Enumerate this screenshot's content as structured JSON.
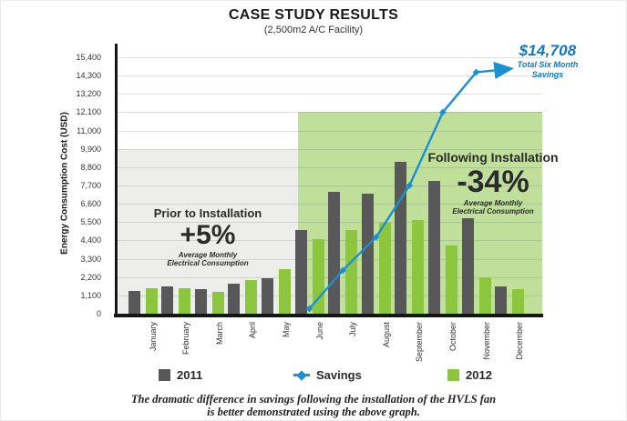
{
  "page": {
    "title": "CASE STUDY RESULTS",
    "subtitle": "(2,500m2 A/C Facility)"
  },
  "chart_data": {
    "type": "bar",
    "title": "CASE STUDY RESULTS",
    "subtitle": "(2,500m2 A/C Facility)",
    "ylabel": "Energy Consumption Cost (USD)",
    "ylim": [
      0,
      15400
    ],
    "ytick_interval": 1100,
    "grid": true,
    "legend_position": "bottom",
    "yticks": [
      {
        "value": 0,
        "label": "0"
      },
      {
        "value": 1100,
        "label": "1,100"
      },
      {
        "value": 2200,
        "label": "2,200"
      },
      {
        "value": 3300,
        "label": "3,300"
      },
      {
        "value": 4400,
        "label": "4,400"
      },
      {
        "value": 5500,
        "label": "5,500"
      },
      {
        "value": 6600,
        "label": "6,600"
      },
      {
        "value": 7700,
        "label": "7,700"
      },
      {
        "value": 8800,
        "label": "8,800"
      },
      {
        "value": 9900,
        "label": "9,900"
      },
      {
        "value": 11000,
        "label": "11,000"
      },
      {
        "value": 12100,
        "label": "12,100"
      },
      {
        "value": 13200,
        "label": "13,200"
      },
      {
        "value": 14300,
        "label": "14,300"
      },
      {
        "value": 15400,
        "label": "15,400"
      }
    ],
    "categories": [
      "January",
      "February",
      "March",
      "April",
      "May",
      "June",
      "July",
      "August",
      "September",
      "October",
      "November",
      "December"
    ],
    "series": [
      {
        "name": "2011",
        "type": "bar",
        "color": "#58585A",
        "values": [
          1350,
          1650,
          1500,
          1800,
          2150,
          5000,
          7300,
          7200,
          9100,
          8000,
          5750,
          1650
        ]
      },
      {
        "name": "2012",
        "type": "bar",
        "color": "#8CC63E",
        "values": [
          1550,
          1550,
          1300,
          2000,
          2700,
          4500,
          5000,
          5450,
          5600,
          4100,
          2200,
          1500
        ]
      },
      {
        "name": "Savings",
        "type": "line",
        "color": "#1B90D1",
        "start_category": "June",
        "values": [
          300,
          2600,
          4600,
          7700,
          12100,
          14500,
          14708
        ]
      }
    ],
    "regions": [
      {
        "name": "prior-to-installation",
        "start_category": "January",
        "end_category": "May",
        "top_value": 9900,
        "color": "#EDEDEB"
      },
      {
        "name": "following-installation",
        "start_category": "June",
        "end_category": "December",
        "top_value": 12100,
        "color": "#BFDF9B"
      }
    ]
  },
  "annotations": {
    "prior": {
      "heading": "Prior to Installation",
      "value": "+5%",
      "sub_line1": "Average Monthly",
      "sub_line2": "Electrical Consumption"
    },
    "following": {
      "heading": "Following Installation",
      "value": "-34%",
      "sub_line1": "Average Monthly",
      "sub_line2": "Electrical Consumption"
    },
    "savings_callout": {
      "amount": "$14,708",
      "sub_line1": "Total Six Month",
      "sub_line2": "Savings"
    }
  },
  "legend": {
    "items": [
      {
        "label": "2011",
        "marker": "square",
        "color": "#58585A"
      },
      {
        "label": "Savings",
        "marker": "diamond-line",
        "color": "#1B90D1"
      },
      {
        "label": "2012",
        "marker": "square",
        "color": "#8CC63E"
      }
    ]
  },
  "caption": {
    "line1": "The dramatic difference in savings following the installation of the HVLS fan",
    "line2": "is better demonstrated using the above graph."
  },
  "colors": {
    "bar_2011": "#58585A",
    "bar_2012": "#8CC63E",
    "savings_line": "#1B90D1",
    "savings_text": "#1377BE",
    "region_prior": "#EDEDEB",
    "region_following": "#BFDF9B",
    "axis": "#151515"
  }
}
